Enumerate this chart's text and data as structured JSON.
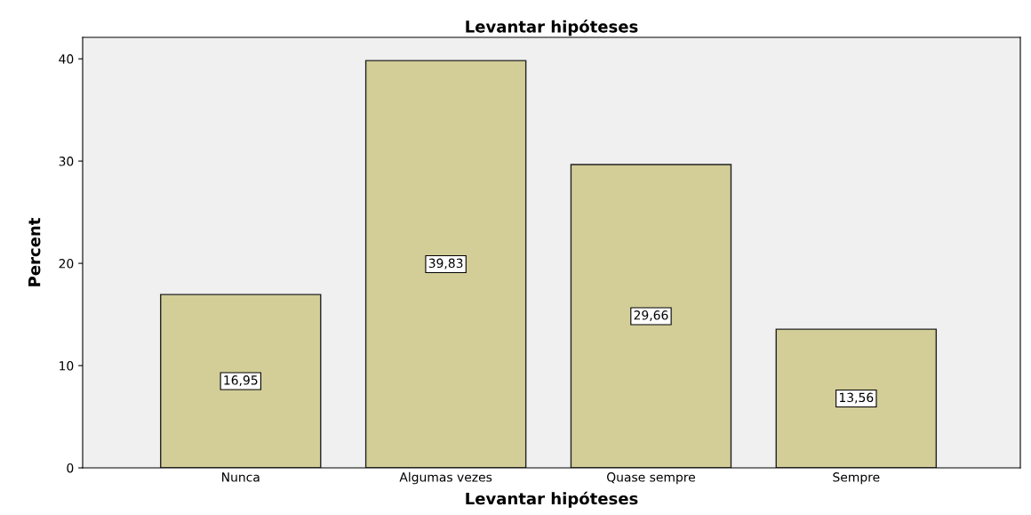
{
  "chart_data": {
    "type": "bar",
    "title": "Levantar hipóteses",
    "xlabel": "Levantar hipóteses",
    "ylabel": "Percent",
    "categories": [
      "Nunca",
      "Algumas vezes",
      "Quase sempre",
      "Sempre"
    ],
    "values": [
      16.95,
      39.83,
      29.66,
      13.56
    ],
    "value_labels": [
      "16,95",
      "39,83",
      "29,66",
      "13,56"
    ],
    "color": "#d3cd98",
    "ylim": [
      0,
      42.1
    ],
    "yticks": [
      0,
      10,
      20,
      30,
      40
    ],
    "grid": false
  }
}
